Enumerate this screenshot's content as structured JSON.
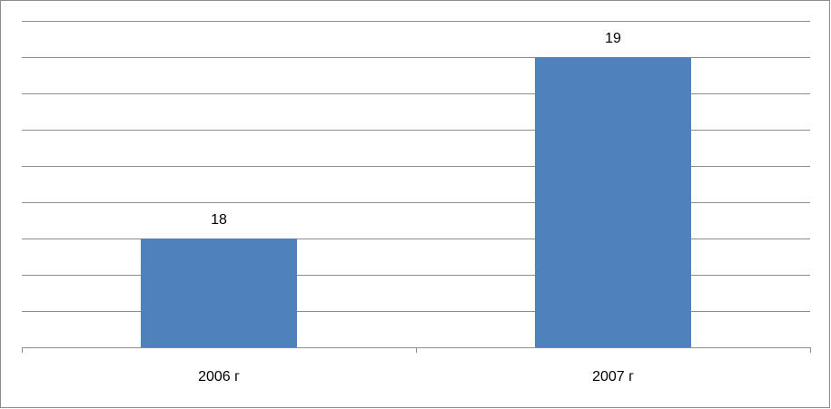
{
  "chart_data": {
    "type": "bar",
    "categories": [
      "2006 г",
      "2007 г"
    ],
    "values": [
      18,
      19
    ],
    "color": "#4f81bd",
    "ylim": [
      17.4,
      19.2
    ],
    "yticks": [
      17.4,
      17.6,
      17.8,
      18.0,
      18.2,
      18.4,
      18.6,
      18.8,
      19.0,
      19.2
    ],
    "grid": true
  }
}
